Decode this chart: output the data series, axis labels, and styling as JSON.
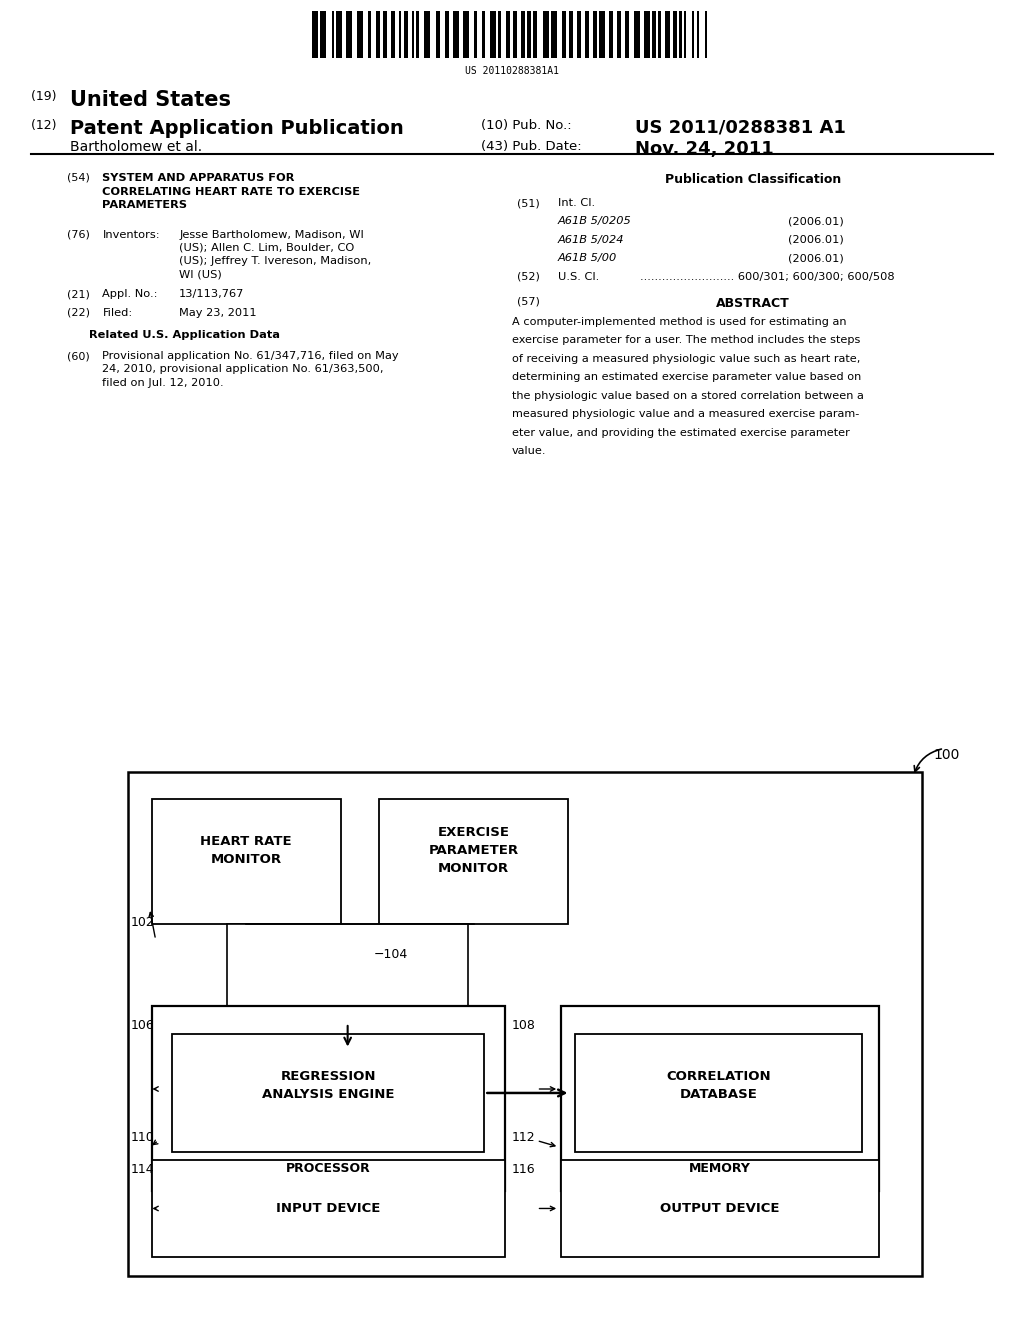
{
  "bg_color": "#ffffff",
  "barcode_text": "US 20110288381A1",
  "int_cl_items": [
    [
      "A61B 5/0205",
      "(2006.01)"
    ],
    [
      "A61B 5/024",
      "(2006.01)"
    ],
    [
      "A61B 5/00",
      "(2006.01)"
    ]
  ],
  "abstract_lines": [
    "A computer-implemented method is used for estimating an",
    "exercise parameter for a user. The method includes the steps",
    "of receiving a measured physiologic value such as heart rate,",
    "determining an estimated exercise parameter value based on",
    "the physiologic value based on a stored correlation between a",
    "measured physiologic value and a measured exercise param-",
    "eter value, and providing the estimated exercise parameter",
    "value."
  ]
}
